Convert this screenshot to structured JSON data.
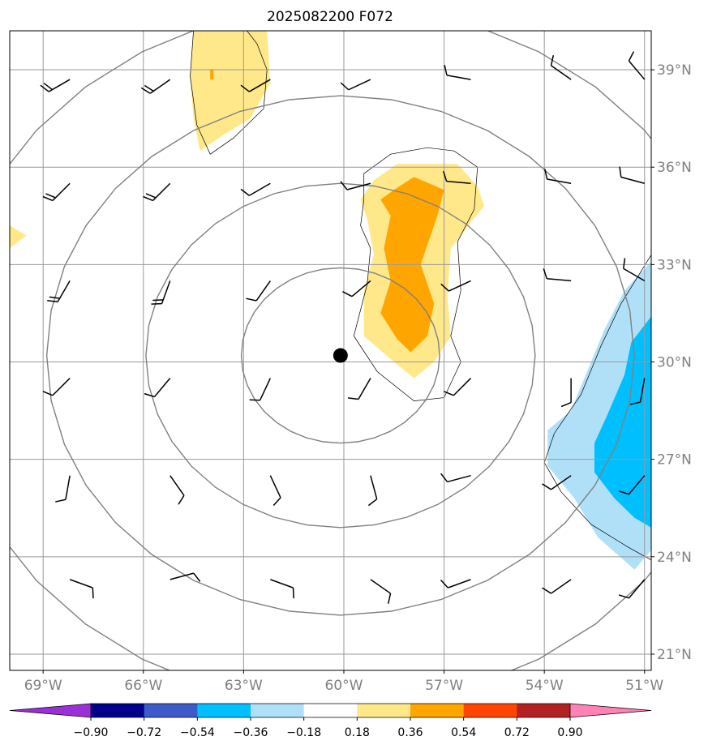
{
  "title": "2025082200 F072",
  "colors": {
    "grid": "#999999",
    "rings": "#808080",
    "frame": "#000000",
    "center_dot": "#000000",
    "barbs": "#000000"
  },
  "map": {
    "lon_range": [
      -70,
      -50.8
    ],
    "lat_range": [
      20.5,
      40.2
    ],
    "center": {
      "lon": -60.1,
      "lat": 30.2
    },
    "x_ticks": [
      {
        "lon": -69,
        "label": "69°W"
      },
      {
        "lon": -66,
        "label": "66°W"
      },
      {
        "lon": -63,
        "label": "63°W"
      },
      {
        "lon": -60,
        "label": "60°W"
      },
      {
        "lon": -57,
        "label": "57°W"
      },
      {
        "lon": -54,
        "label": "54°W"
      },
      {
        "lon": -51,
        "label": "51°W"
      }
    ],
    "y_ticks": [
      {
        "lat": 39,
        "label": "39°N"
      },
      {
        "lat": 36,
        "label": "36°N"
      },
      {
        "lat": 33,
        "label": "33°N"
      },
      {
        "lat": 30,
        "label": "30°N"
      },
      {
        "lat": 27,
        "label": "27°N"
      },
      {
        "lat": 24,
        "label": "24°N"
      },
      {
        "lat": 21,
        "label": "21°N"
      }
    ],
    "range_rings_deg": [
      2.7,
      5.3,
      8.0,
      10.8
    ]
  },
  "colorbar": {
    "levels": [
      "−0.90",
      "−0.72",
      "−0.54",
      "−0.36",
      "−0.18",
      "0.18",
      "0.36",
      "0.54",
      "0.72",
      "0.90"
    ],
    "under_color": "#9b30d9",
    "over_color": "#ff82b4",
    "colors": [
      "#00008b",
      "#3c5ac8",
      "#00bfff",
      "#b0e0f8",
      "#ffffff",
      "#ffe88a",
      "#ffa500",
      "#ff4500",
      "#b22222"
    ]
  },
  "fields": [
    {
      "name": "anomaly-north-blob",
      "color": "#ffe88a",
      "coords": [
        [
          -64.5,
          40.2
        ],
        [
          -62.3,
          40.2
        ],
        [
          -62.2,
          38.6
        ],
        [
          -62.8,
          37.5
        ],
        [
          -63.6,
          37.0
        ],
        [
          -64.3,
          36.5
        ],
        [
          -64.5,
          37.5
        ],
        [
          -64.6,
          38.8
        ]
      ]
    },
    {
      "name": "anomaly-north-blob-spot",
      "color": "#ffa500",
      "coords": [
        [
          -64.0,
          39.0
        ],
        [
          -63.9,
          39.0
        ],
        [
          -63.9,
          38.7
        ],
        [
          -64.0,
          38.7
        ]
      ]
    },
    {
      "name": "anomaly-west-edge",
      "color": "#ffe88a",
      "coords": [
        [
          -70,
          34.2
        ],
        [
          -69.5,
          33.9
        ],
        [
          -70,
          33.5
        ]
      ]
    },
    {
      "name": "anomaly-center-blob",
      "color": "#ffe88a",
      "coords": [
        [
          -59.1,
          35.6
        ],
        [
          -58.4,
          36.1
        ],
        [
          -56.6,
          36.1
        ],
        [
          -56.0,
          35.4
        ],
        [
          -55.8,
          34.8
        ],
        [
          -56.2,
          34.3
        ],
        [
          -56.8,
          33.5
        ],
        [
          -56.9,
          32.0
        ],
        [
          -56.8,
          30.8
        ],
        [
          -57.3,
          30.0
        ],
        [
          -57.9,
          29.5
        ],
        [
          -58.5,
          30.0
        ],
        [
          -59.4,
          30.8
        ],
        [
          -59.4,
          32.2
        ],
        [
          -59.1,
          33.3
        ],
        [
          -59.3,
          34.4
        ],
        [
          -59.5,
          35.0
        ]
      ]
    },
    {
      "name": "anomaly-center-core",
      "color": "#ffa500",
      "coords": [
        [
          -58.5,
          35.3
        ],
        [
          -57.9,
          35.7
        ],
        [
          -57.0,
          35.3
        ],
        [
          -57.2,
          34.5
        ],
        [
          -57.7,
          33.0
        ],
        [
          -57.3,
          31.8
        ],
        [
          -57.5,
          30.8
        ],
        [
          -58.0,
          30.3
        ],
        [
          -58.4,
          30.7
        ],
        [
          -58.9,
          31.5
        ],
        [
          -58.6,
          32.5
        ],
        [
          -58.8,
          33.5
        ],
        [
          -58.6,
          34.5
        ],
        [
          -58.9,
          35.0
        ]
      ]
    },
    {
      "name": "anomaly-east-light",
      "color": "#b0e0f8",
      "coords": [
        [
          -50.8,
          33.1
        ],
        [
          -51.6,
          32.2
        ],
        [
          -52.2,
          31.0
        ],
        [
          -52.6,
          30.0
        ],
        [
          -53.2,
          28.5
        ],
        [
          -53.9,
          27.9
        ],
        [
          -53.9,
          26.8
        ],
        [
          -53.1,
          25.8
        ],
        [
          -52.4,
          24.6
        ],
        [
          -51.3,
          23.6
        ],
        [
          -50.8,
          24.2
        ]
      ]
    },
    {
      "name": "anomaly-east-core",
      "color": "#00bfff",
      "coords": [
        [
          -50.8,
          31.4
        ],
        [
          -51.4,
          30.6
        ],
        [
          -51.6,
          29.6
        ],
        [
          -52.1,
          28.4
        ],
        [
          -52.5,
          27.5
        ],
        [
          -52.5,
          26.6
        ],
        [
          -51.9,
          25.8
        ],
        [
          -51.3,
          25.2
        ],
        [
          -50.8,
          24.9
        ]
      ]
    }
  ],
  "outlines": [
    {
      "name": "outline-north",
      "closed": false,
      "coords": [
        [
          -64.5,
          40.2
        ],
        [
          -64.6,
          38.8
        ],
        [
          -64.4,
          37.3
        ],
        [
          -64.0,
          36.4
        ],
        [
          -63.3,
          36.9
        ],
        [
          -62.4,
          37.8
        ],
        [
          -62.3,
          39.0
        ],
        [
          -62.6,
          39.8
        ],
        [
          -62.9,
          40.2
        ]
      ]
    },
    {
      "name": "outline-center",
      "closed": true,
      "coords": [
        [
          -59.4,
          35.8
        ],
        [
          -58.6,
          36.4
        ],
        [
          -57.5,
          36.6
        ],
        [
          -56.7,
          36.5
        ],
        [
          -56.0,
          36.0
        ],
        [
          -56.1,
          34.7
        ],
        [
          -56.6,
          33.7
        ],
        [
          -56.5,
          32.2
        ],
        [
          -56.8,
          30.8
        ],
        [
          -56.5,
          30.0
        ],
        [
          -57.0,
          28.9
        ],
        [
          -57.9,
          28.8
        ],
        [
          -59.0,
          29.7
        ],
        [
          -59.7,
          30.8
        ],
        [
          -59.3,
          32.4
        ],
        [
          -59.2,
          33.5
        ],
        [
          -59.5,
          34.2
        ],
        [
          -59.4,
          35.0
        ]
      ]
    },
    {
      "name": "outline-east",
      "closed": false,
      "coords": [
        [
          -50.8,
          33.3
        ],
        [
          -51.7,
          31.8
        ],
        [
          -52.3,
          30.5
        ],
        [
          -52.9,
          29.0
        ],
        [
          -53.7,
          27.8
        ],
        [
          -54.0,
          26.9
        ],
        [
          -53.5,
          26.0
        ],
        [
          -52.6,
          25.0
        ],
        [
          -51.5,
          24.3
        ],
        [
          -50.8,
          23.9
        ]
      ]
    }
  ],
  "barbs": [
    {
      "lat": 38.7,
      "rows": [
        {
          "lon": -68.2,
          "d": 240,
          "f": 2
        },
        {
          "lon": -65.2,
          "d": 235,
          "f": 2
        },
        {
          "lon": -62.2,
          "d": 240,
          "f": 1
        },
        {
          "lon": -59.2,
          "d": 245,
          "f": 1
        },
        {
          "lon": -56.2,
          "d": 280,
          "f": 1
        },
        {
          "lon": -53.2,
          "d": 305,
          "f": 1
        },
        {
          "lon": -51.0,
          "d": 320,
          "f": 1
        }
      ]
    },
    {
      "lat": 35.5,
      "rows": [
        {
          "lon": -68.2,
          "d": 225,
          "f": 2
        },
        {
          "lon": -65.2,
          "d": 225,
          "f": 2
        },
        {
          "lon": -62.2,
          "d": 240,
          "f": 1
        },
        {
          "lon": -59.2,
          "d": 255,
          "f": 1
        },
        {
          "lon": -56.2,
          "d": 275,
          "f": 1
        },
        {
          "lon": -53.2,
          "d": 280,
          "f": 1
        },
        {
          "lon": -51.0,
          "d": 285,
          "f": 1
        }
      ]
    },
    {
      "lat": 32.5,
      "rows": [
        {
          "lon": -68.2,
          "d": 210,
          "f": 2
        },
        {
          "lon": -65.2,
          "d": 200,
          "f": 2
        },
        {
          "lon": -62.2,
          "d": 215,
          "f": 1
        },
        {
          "lon": -59.2,
          "d": 230,
          "f": 1
        },
        {
          "lon": -56.2,
          "d": 245,
          "f": 1
        },
        {
          "lon": -53.2,
          "d": 275,
          "f": 1
        },
        {
          "lon": -51.0,
          "d": 300,
          "f": 1
        }
      ]
    },
    {
      "lat": 29.5,
      "rows": [
        {
          "lon": -68.2,
          "d": 225,
          "f": 1
        },
        {
          "lon": -65.2,
          "d": 220,
          "f": 1
        },
        {
          "lon": -62.2,
          "d": 205,
          "f": 1
        },
        {
          "lon": -59.2,
          "d": 210,
          "f": 1
        },
        {
          "lon": -56.2,
          "d": 225,
          "f": 1
        },
        {
          "lon": -53.2,
          "d": 180,
          "f": 1
        },
        {
          "lon": -51.0,
          "d": 190,
          "f": 1
        }
      ]
    },
    {
      "lat": 26.5,
      "rows": [
        {
          "lon": -68.2,
          "d": 190,
          "f": 1
        },
        {
          "lon": -65.2,
          "d": 145,
          "f": 1
        },
        {
          "lon": -62.2,
          "d": 155,
          "f": 1
        },
        {
          "lon": -59.2,
          "d": 165,
          "f": 1
        },
        {
          "lon": -56.2,
          "d": 255,
          "f": 1
        },
        {
          "lon": -53.2,
          "d": 235,
          "f": 1
        },
        {
          "lon": -51.0,
          "d": 220,
          "f": 1
        }
      ]
    },
    {
      "lat": 23.3,
      "rows": [
        {
          "lon": -68.2,
          "d": 110,
          "f": 1
        },
        {
          "lon": -65.2,
          "d": 75,
          "f": 1
        },
        {
          "lon": -62.2,
          "d": 110,
          "f": 1
        },
        {
          "lon": -59.2,
          "d": 125,
          "f": 1
        },
        {
          "lon": -56.2,
          "d": 250,
          "f": 1
        },
        {
          "lon": -53.2,
          "d": 235,
          "f": 1
        },
        {
          "lon": -51.0,
          "d": 220,
          "f": 1
        }
      ]
    }
  ]
}
